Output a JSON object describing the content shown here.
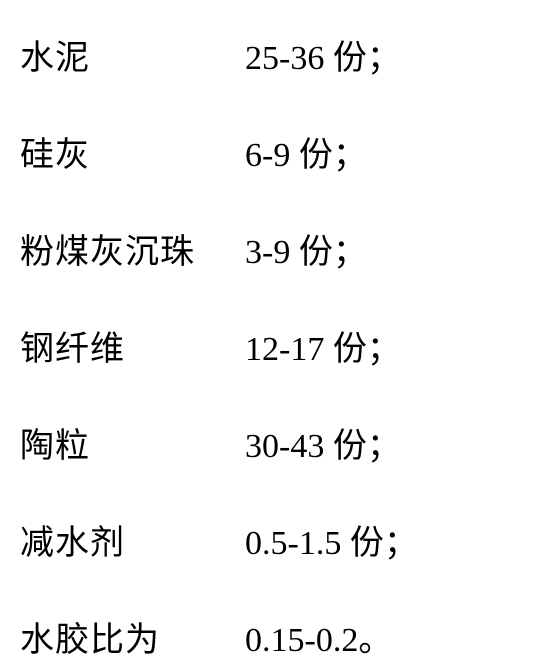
{
  "formula": {
    "layout": {
      "name_column_width": 225,
      "row_gap": 48,
      "font_size": 34,
      "font_family": "SimSun",
      "text_color": "#000000",
      "background_color": "#ffffff"
    },
    "ingredients": [
      {
        "name": "水泥",
        "amount": "25-36 份；"
      },
      {
        "name": "硅灰",
        "amount": "6-9 份；"
      },
      {
        "name": "粉煤灰沉珠",
        "amount": "3-9 份；"
      },
      {
        "name": "钢纤维",
        "amount": "12-17 份；"
      },
      {
        "name": "陶粒",
        "amount": "30-43 份；"
      },
      {
        "name": "减水剂",
        "amount": "0.5-1.5 份；"
      },
      {
        "name": "水胶比为",
        "amount": "0.15-0.2。"
      }
    ]
  }
}
